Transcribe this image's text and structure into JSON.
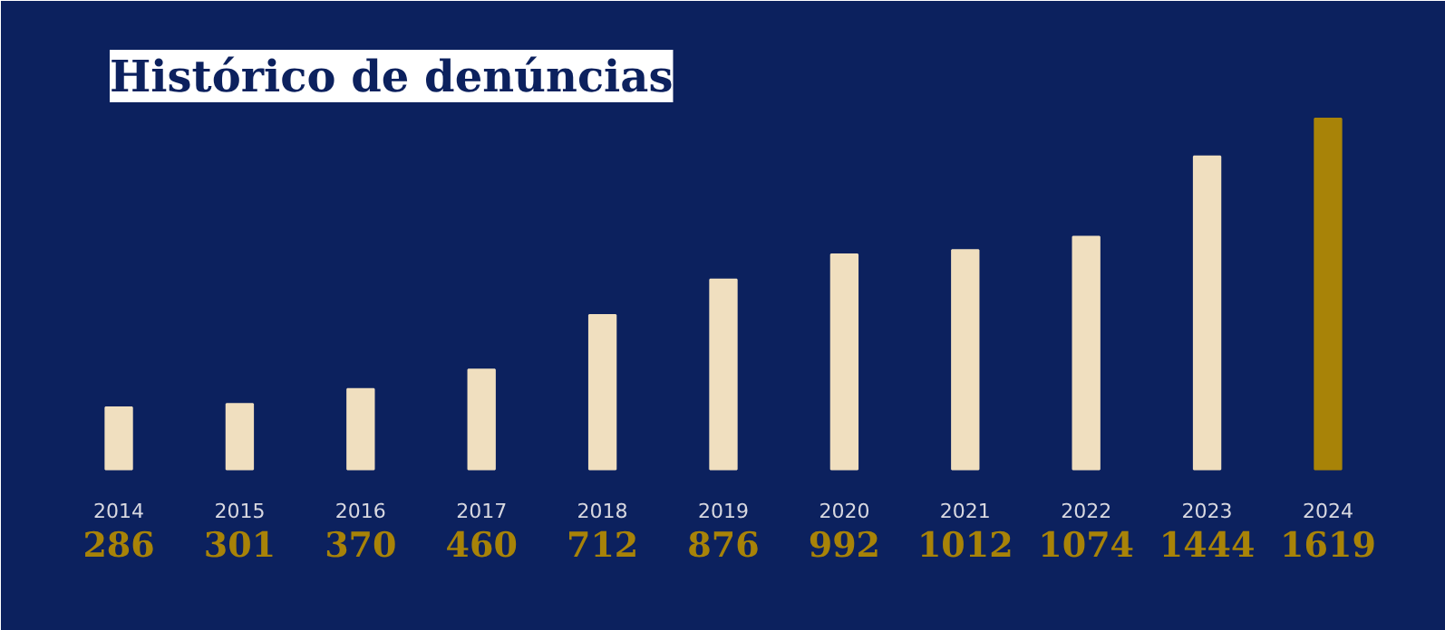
{
  "chart_data": {
    "type": "bar",
    "title": "Histórico de denúncias",
    "categories": [
      "2014",
      "2015",
      "2016",
      "2017",
      "2018",
      "2019",
      "2020",
      "2021",
      "2022",
      "2023",
      "2024"
    ],
    "values": [
      286,
      301,
      370,
      460,
      712,
      876,
      992,
      1012,
      1074,
      1444,
      1619
    ],
    "colors": [
      "#f0dfbf",
      "#f0dfbf",
      "#f0dfbf",
      "#f0dfbf",
      "#f0dfbf",
      "#f0dfbf",
      "#f0dfbf",
      "#f0dfbf",
      "#f0dfbf",
      "#f0dfbf",
      "#a88308"
    ],
    "data_labels": true,
    "tick_labels": false,
    "grid": false
  }
}
